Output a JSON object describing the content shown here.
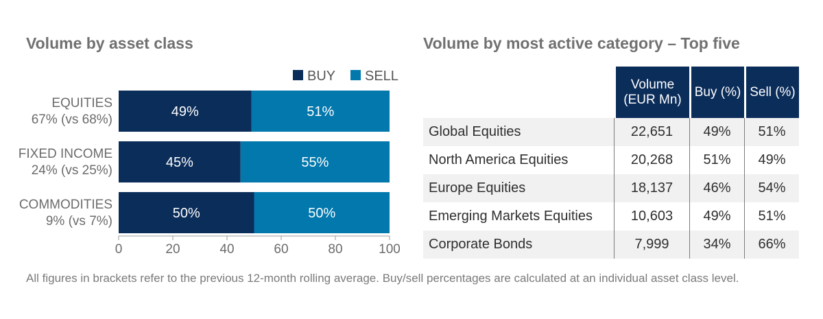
{
  "left_title": "Volume by asset class",
  "right_title": "Volume by most active category – Top five",
  "chart_data": [
    {
      "type": "bar",
      "orientation": "horizontal",
      "stacked": true,
      "title": "Volume by asset class",
      "categories": [
        [
          "EQUITIES",
          "67% (vs 68%)"
        ],
        [
          "FIXED INCOME",
          "24% (vs 25%)"
        ],
        [
          "COMMODITIES",
          "9% (vs 7%)"
        ]
      ],
      "series": [
        {
          "name": "BUY",
          "color": "#0b2d5a",
          "values": [
            49,
            45,
            50
          ],
          "labels": [
            "49%",
            "45%",
            "50%"
          ]
        },
        {
          "name": "SELL",
          "color": "#0378ad",
          "values": [
            51,
            55,
            50
          ],
          "labels": [
            "51%",
            "55%",
            "50%"
          ]
        }
      ],
      "xlim": [
        0,
        100
      ],
      "xticks": [
        "0",
        "20",
        "40",
        "60",
        "80",
        "100"
      ],
      "grid": false,
      "legend": "top-right"
    },
    {
      "type": "table",
      "title": "Volume by most active category – Top five",
      "columns": [
        "Volume (EUR Mn)",
        "Buy (%)",
        "Sell (%)"
      ],
      "rows": [
        {
          "category": "Global Equities",
          "volume": "22,651",
          "buy": "49%",
          "sell": "51%"
        },
        {
          "category": "North America Equities",
          "volume": "20,268",
          "buy": "51%",
          "sell": "49%"
        },
        {
          "category": "Europe Equities",
          "volume": "18,137",
          "buy": "46%",
          "sell": "54%"
        },
        {
          "category": "Emerging Markets Equities",
          "volume": "10,603",
          "buy": "49%",
          "sell": "51%"
        },
        {
          "category": "Corporate Bonds",
          "volume": "7,999",
          "buy": "34%",
          "sell": "66%"
        }
      ]
    }
  ],
  "footnote": "All figures in brackets refer to the previous 12-month rolling average. Buy/sell percentages are calculated at an individual asset class level."
}
